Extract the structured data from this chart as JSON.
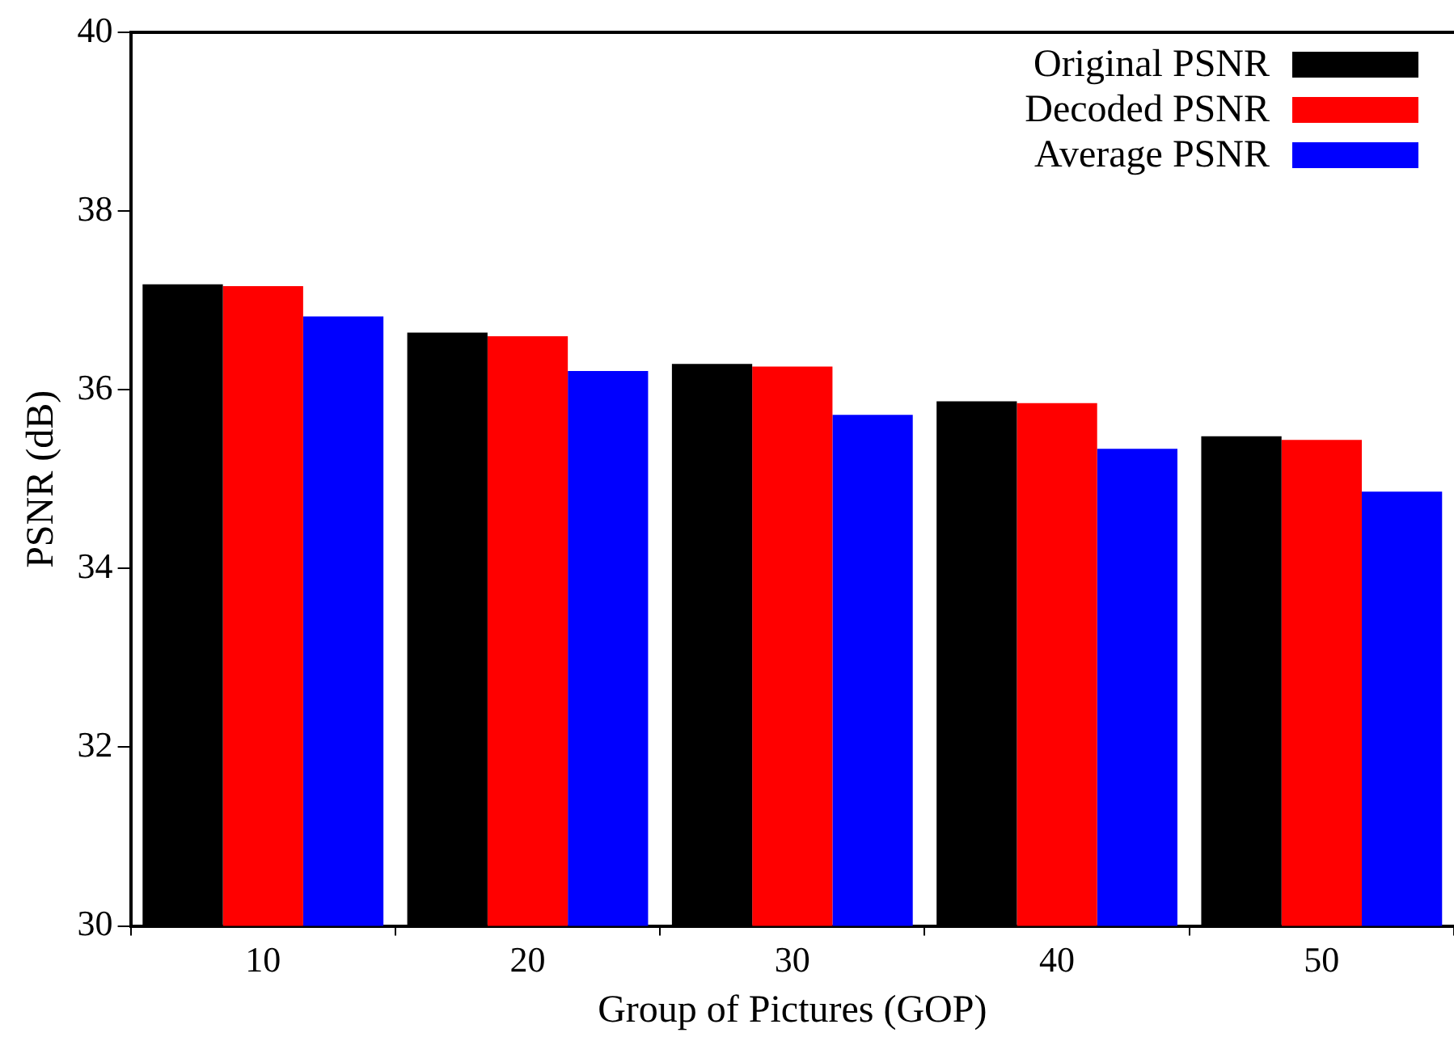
{
  "chart_data": {
    "type": "bar",
    "xlabel": "Group of Pictures (GOP)",
    "ylabel": "PSNR (dB)",
    "categories": [
      "10",
      "20",
      "30",
      "40",
      "50"
    ],
    "series": [
      {
        "name": "Original PSNR",
        "color": "#000000",
        "values": [
          37.18,
          36.64,
          36.29,
          35.87,
          35.48
        ]
      },
      {
        "name": "Decoded PSNR",
        "color": "#ff0000",
        "values": [
          37.16,
          36.6,
          36.26,
          35.85,
          35.44
        ]
      },
      {
        "name": "Average PSNR",
        "color": "#0000ff",
        "values": [
          36.82,
          36.21,
          35.72,
          35.34,
          34.86
        ]
      }
    ],
    "ylim": [
      30,
      40
    ],
    "yticks": [
      30,
      32,
      34,
      36,
      38,
      40
    ],
    "grid": false,
    "legend": "top right"
  }
}
